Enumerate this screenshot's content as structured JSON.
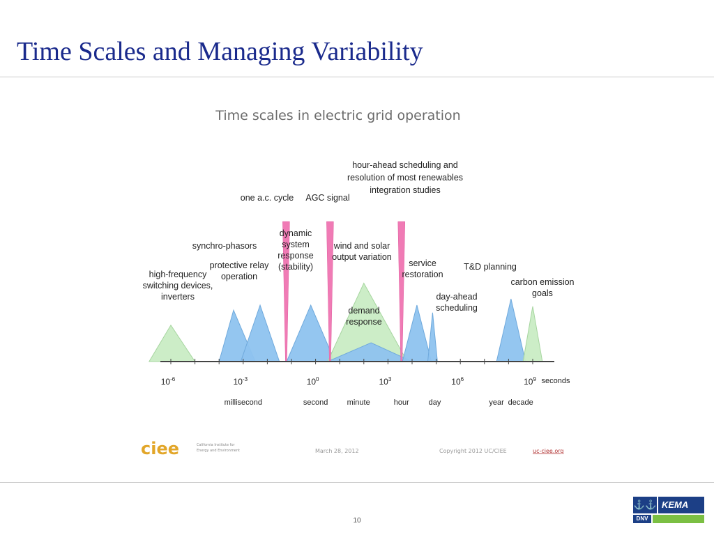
{
  "slide": {
    "title": "Time Scales and Managing Variability",
    "number": "10"
  },
  "figure": {
    "title": "Time scales in electric grid operation",
    "footer": {
      "logo": "ciee",
      "logo_caption_1": "California Institute for",
      "logo_caption_2": "Energy and Environment",
      "date": "March 28, 2012",
      "copyright": "Copyright 2012 UC/CIEE",
      "url": "uc-ciee.org"
    },
    "colors": {
      "green": "#c9ecc4",
      "blue": "#8ec3ef",
      "pink": "#f07bb5",
      "title_gray": "#6b6b6b"
    }
  },
  "chart_data": {
    "type": "area",
    "title": "Time scales in electric grid operation",
    "x_scale": "log10",
    "x_unit_label": "seconds",
    "x_ticks": [
      {
        "exp": -6,
        "label": "10",
        "sup": "-6"
      },
      {
        "exp": -3,
        "label": "10",
        "sup": "-3"
      },
      {
        "exp": 0,
        "label": "10",
        "sup": "0"
      },
      {
        "exp": 3,
        "label": "10",
        "sup": "3"
      },
      {
        "exp": 6,
        "label": "10",
        "sup": "6"
      },
      {
        "exp": 9,
        "label": "10",
        "sup": "9"
      }
    ],
    "unit_labels": [
      {
        "exp": -3,
        "label": "millisecond"
      },
      {
        "exp": 0,
        "label": "second"
      },
      {
        "exp": 1.78,
        "label": "minute"
      },
      {
        "exp": 3.56,
        "label": "hour"
      },
      {
        "exp": 4.94,
        "label": "day"
      },
      {
        "exp": 7.5,
        "label": "year"
      },
      {
        "exp": 8.5,
        "label": "decade"
      }
    ],
    "markers": [
      {
        "name": "one a.c. cycle",
        "exp": -1.22
      },
      {
        "name": "AGC signal",
        "exp": 0.6
      },
      {
        "name": "hour-ahead scheduling and resolution of most renewables integration studies",
        "exp": 3.56
      }
    ],
    "ranges": [
      {
        "label": "high-frequency switching devices, inverters",
        "color": "green",
        "from": -6.9,
        "peak": -6.0,
        "to": -5.0,
        "height": 0.58
      },
      {
        "label": "synchro-phasors",
        "color": "blue",
        "from": -4.0,
        "peak": -3.4,
        "to": -2.5,
        "height": 0.82
      },
      {
        "label": "protective relay operation",
        "color": "blue",
        "from": -3.1,
        "peak": -2.3,
        "to": -1.5,
        "height": 0.9
      },
      {
        "label": "dynamic system response (stability)",
        "color": "blue",
        "from": -1.2,
        "peak": -0.2,
        "to": 0.8,
        "height": 0.9
      },
      {
        "label": "wind and solar output variation",
        "color": "green",
        "from": 0.5,
        "peak": 2.0,
        "to": 3.8,
        "height": 1.25
      },
      {
        "label": "demand response",
        "color": "blue",
        "from": 0.5,
        "peak": 2.3,
        "to": 4.0,
        "height": 0.3
      },
      {
        "label": "service restoration",
        "color": "blue",
        "from": 3.6,
        "peak": 4.2,
        "to": 4.8,
        "height": 0.9
      },
      {
        "label": "day-ahead scheduling",
        "color": "blue",
        "from": 4.65,
        "peak": 4.85,
        "to": 5.05,
        "height": 0.78
      },
      {
        "label": "T&D planning",
        "color": "blue",
        "from": 7.5,
        "peak": 8.1,
        "to": 8.7,
        "height": 1.0
      },
      {
        "label": "carbon emission goals",
        "color": "green",
        "from": 8.6,
        "peak": 9.0,
        "to": 9.4,
        "height": 0.88
      }
    ],
    "range_labels": [
      {
        "idx": 0,
        "lines": [
          "high-frequency",
          "switching devices,",
          "inverters"
        ]
      },
      {
        "idx": 1,
        "lines": [
          "synchro-phasors"
        ]
      },
      {
        "idx": 2,
        "lines": [
          "protective relay",
          "operation"
        ]
      },
      {
        "idx": 3,
        "lines": [
          "dynamic",
          "system",
          "response",
          "(stability)"
        ]
      },
      {
        "idx": 4,
        "lines": [
          "wind and solar",
          "output variation"
        ]
      },
      {
        "idx": 5,
        "lines": [
          "demand",
          "response"
        ]
      },
      {
        "idx": 6,
        "lines": [
          "service",
          "restoration"
        ]
      },
      {
        "idx": 7,
        "lines": [
          "day-ahead",
          "scheduling"
        ]
      },
      {
        "idx": 8,
        "lines": [
          "T&D planning"
        ]
      },
      {
        "idx": 9,
        "lines": [
          "carbon emission",
          "goals"
        ]
      }
    ],
    "marker_labels": [
      {
        "idx": 0,
        "lines": [
          "one a.c. cycle"
        ]
      },
      {
        "idx": 1,
        "lines": [
          "AGC signal"
        ]
      },
      {
        "idx": 2,
        "lines": [
          "hour-ahead scheduling and",
          "resolution of most renewables",
          "integration studies"
        ]
      }
    ]
  },
  "logo": {
    "marks": "⚓⚓",
    "brand": "KEMA",
    "sub": "DNV"
  }
}
